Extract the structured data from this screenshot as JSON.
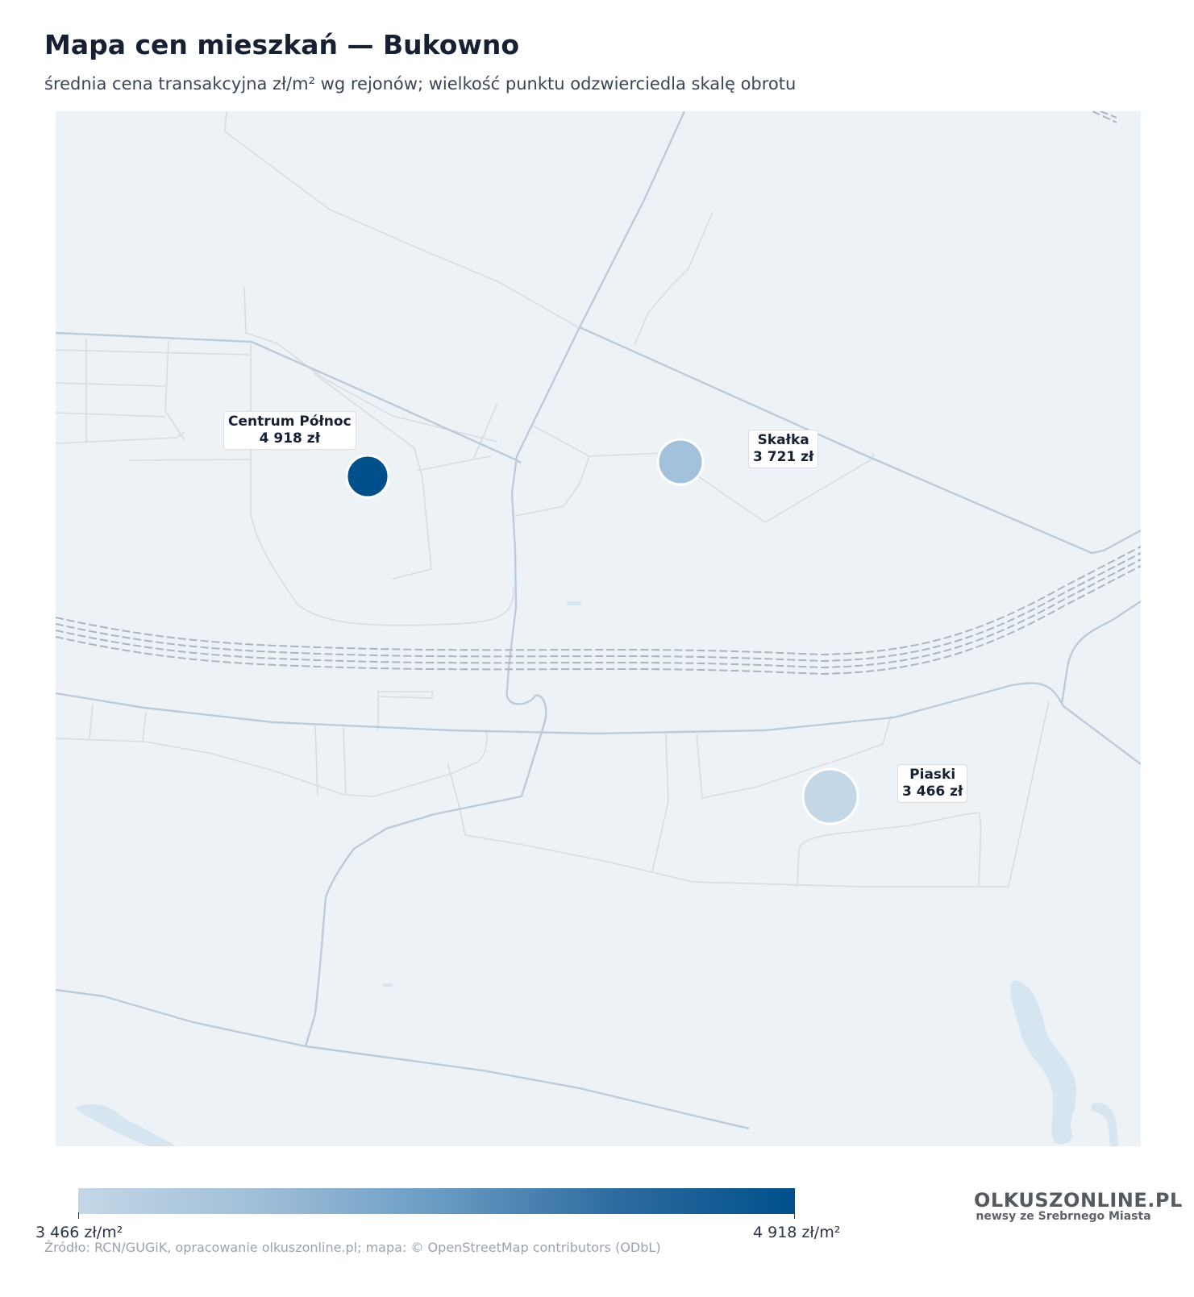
{
  "header": {
    "title": "Mapa cen mieszkań — Bukowno",
    "subtitle": "średnia cena transakcyjna zł/m² wg rejonów; wielkość punktu odzwierciedla skalę obrotu"
  },
  "districts": [
    {
      "name": "Centrum Północ",
      "price_label": "4 918 zł",
      "price": 4918,
      "color": "#00508b"
    },
    {
      "name": "Skałka",
      "price_label": "3 721 zł",
      "price": 3721,
      "color": "#a3c1da"
    },
    {
      "name": "Piaski",
      "price_label": "3 466 zł",
      "price": 3466,
      "color": "#c3d7e7"
    }
  ],
  "legend": {
    "min_label": "3 466 zł/m²",
    "max_label": "4 918 zł/m²",
    "min_value": 3466,
    "max_value": 4918,
    "color_low": "#c3d7e7",
    "color_high": "#00508b"
  },
  "source": "Źródło: RCN/GUGiK, opracowanie olkuszonline.pl; mapa: © OpenStreetMap contributors (ODbL)",
  "logo": {
    "name": "OLKUSZONLINE.PL",
    "tagline": "newsy ze Srebrnego Miasta"
  },
  "colors": {
    "map_background": "#edf2f6",
    "main_road": "#bccbda",
    "minor_road": "#d5dce4",
    "railway": "#aab4c2",
    "water": "#d6e5f0"
  }
}
